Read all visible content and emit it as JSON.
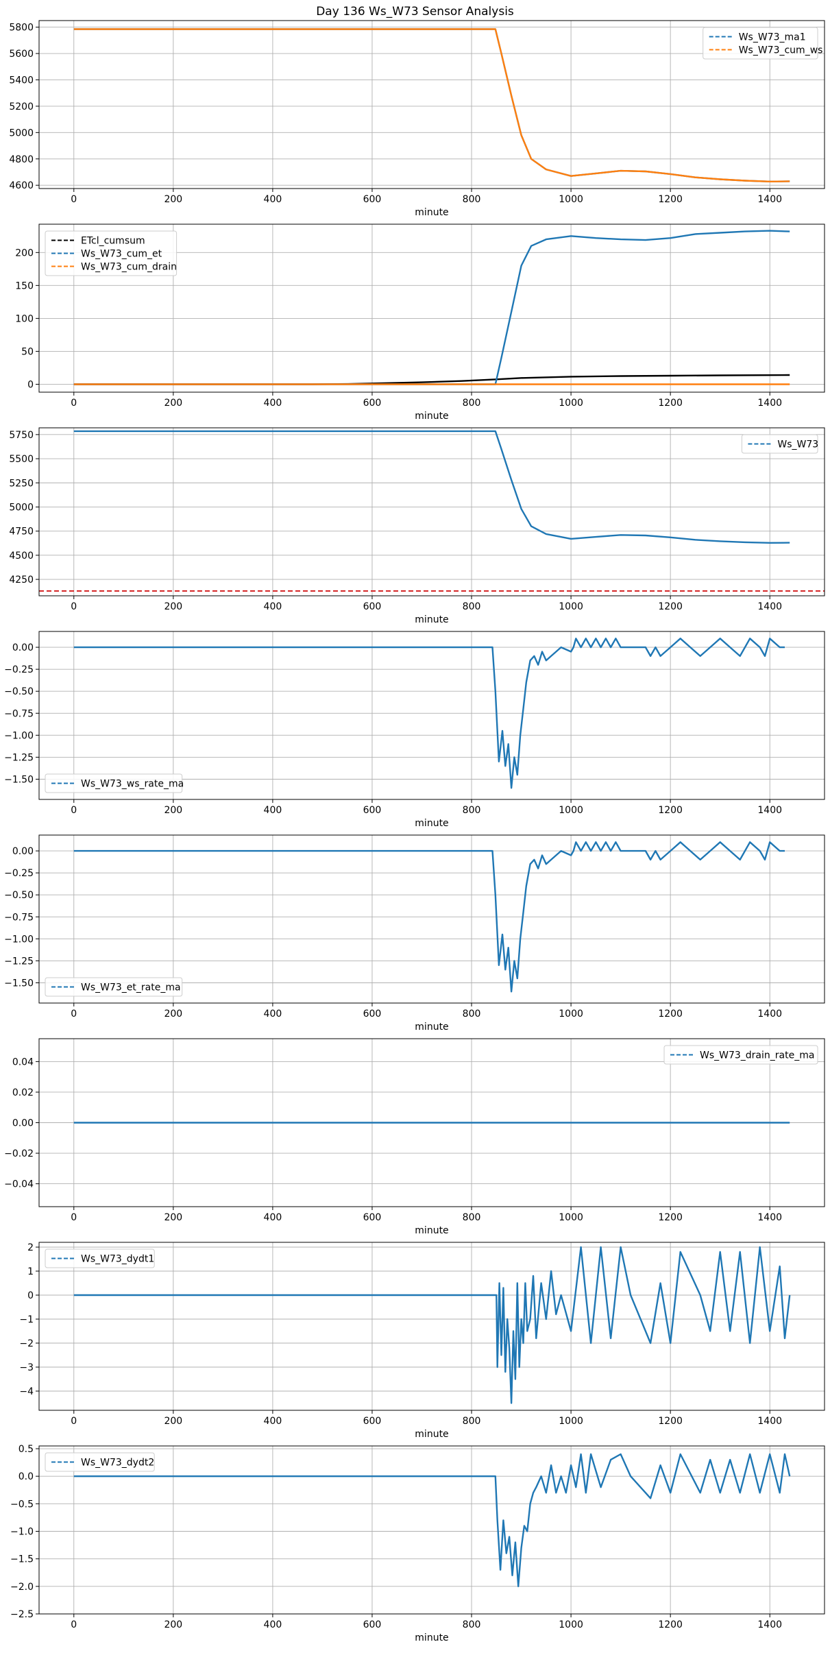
{
  "figure": {
    "title": "Day 136 Ws_W73 Sensor Analysis"
  },
  "colors": {
    "blue": "#1f77b4",
    "orange": "#ff7f0e",
    "black": "#000000",
    "red": "#d62728",
    "grid": "#b0b0b0"
  },
  "chart_data": [
    {
      "type": "line",
      "xlabel": "minute",
      "xlim": [
        -70,
        1510
      ],
      "xticks": [
        0,
        200,
        400,
        600,
        800,
        1000,
        1200,
        1400
      ],
      "ylim": [
        4575,
        5850
      ],
      "yticks": [
        4600,
        4800,
        5000,
        5200,
        5400,
        5600,
        5800
      ],
      "legend": {
        "position": "top-right",
        "entries": [
          "Ws_W73_ma1",
          "Ws_W73_cum_ws"
        ]
      },
      "series": [
        {
          "name": "Ws_W73_ma1",
          "color": "#1f77b4",
          "x": [
            0,
            848,
            860,
            880,
            900,
            920,
            950,
            1000,
            1050,
            1100,
            1150,
            1200,
            1250,
            1300,
            1350,
            1400,
            1440
          ],
          "y": [
            5785,
            5785,
            5600,
            5280,
            4980,
            4800,
            4720,
            4670,
            4690,
            4710,
            4705,
            4685,
            4660,
            4645,
            4635,
            4628,
            4630
          ]
        },
        {
          "name": "Ws_W73_cum_ws",
          "color": "#ff7f0e",
          "x": [
            0,
            848,
            860,
            880,
            900,
            920,
            950,
            1000,
            1050,
            1100,
            1150,
            1200,
            1250,
            1300,
            1350,
            1400,
            1440
          ],
          "y": [
            5785,
            5785,
            5600,
            5280,
            4980,
            4800,
            4720,
            4670,
            4690,
            4710,
            4705,
            4685,
            4660,
            4645,
            4635,
            4628,
            4630
          ]
        }
      ]
    },
    {
      "type": "line",
      "xlabel": "minute",
      "xlim": [
        -70,
        1510
      ],
      "xticks": [
        0,
        200,
        400,
        600,
        800,
        1000,
        1200,
        1400
      ],
      "ylim": [
        -12,
        243
      ],
      "yticks": [
        0,
        50,
        100,
        150,
        200
      ],
      "legend": {
        "position": "top-left",
        "entries": [
          "ETcl_cumsum",
          "Ws_W73_cum_et",
          "Ws_W73_cum_drain"
        ]
      },
      "series": [
        {
          "name": "ETcl_cumsum",
          "color": "#000000",
          "x": [
            0,
            480,
            560,
            620,
            700,
            780,
            850,
            900,
            1000,
            1100,
            1200,
            1300,
            1440
          ],
          "y": [
            0,
            0,
            0.5,
            1.5,
            3,
            5,
            7.5,
            9.5,
            11.5,
            12.5,
            13,
            13.5,
            14
          ]
        },
        {
          "name": "Ws_W73_cum_et",
          "color": "#1f77b4",
          "x": [
            0,
            848,
            860,
            880,
            900,
            920,
            950,
            1000,
            1050,
            1100,
            1150,
            1200,
            1250,
            1300,
            1350,
            1400,
            1440
          ],
          "y": [
            0,
            0,
            40,
            110,
            180,
            210,
            220,
            225,
            222,
            220,
            219,
            222,
            228,
            230,
            232,
            233,
            232
          ]
        },
        {
          "name": "Ws_W73_cum_drain",
          "color": "#ff7f0e",
          "x": [
            0,
            1440
          ],
          "y": [
            0,
            0
          ]
        }
      ]
    },
    {
      "type": "line",
      "xlabel": "minute",
      "xlim": [
        -70,
        1510
      ],
      "xticks": [
        0,
        200,
        400,
        600,
        800,
        1000,
        1200,
        1400
      ],
      "ylim": [
        4080,
        5820
      ],
      "yticks": [
        4250,
        4500,
        4750,
        5000,
        5250,
        5500,
        5750
      ],
      "legend": {
        "position": "top-right",
        "entries": [
          "Ws_W73"
        ]
      },
      "hline": {
        "y": 4130,
        "color": "#d62728"
      },
      "series": [
        {
          "name": "Ws_W73",
          "color": "#1f77b4",
          "x": [
            0,
            848,
            860,
            880,
            900,
            920,
            950,
            1000,
            1050,
            1100,
            1150,
            1200,
            1250,
            1300,
            1350,
            1400,
            1440
          ],
          "y": [
            5785,
            5785,
            5600,
            5280,
            4980,
            4800,
            4720,
            4670,
            4690,
            4710,
            4705,
            4685,
            4660,
            4645,
            4635,
            4628,
            4630
          ]
        }
      ]
    },
    {
      "type": "line",
      "xlabel": "minute",
      "xlim": [
        -70,
        1510
      ],
      "xticks": [
        0,
        200,
        400,
        600,
        800,
        1000,
        1200,
        1400
      ],
      "ylim": [
        -1.73,
        0.18
      ],
      "yticks": [
        -1.5,
        -1.25,
        -1.0,
        -0.75,
        -0.5,
        -0.25,
        0.0
      ],
      "ytick_decimals": 2,
      "legend": {
        "position": "bottom-left",
        "entries": [
          "Ws_W73_ws_rate_ma"
        ]
      },
      "series": [
        {
          "name": "Ws_W73_ws_rate_ma",
          "color": "#1f77b4",
          "x": [
            0,
            842,
            848,
            855,
            862,
            868,
            874,
            880,
            886,
            892,
            898,
            904,
            910,
            918,
            926,
            934,
            942,
            950,
            960,
            980,
            1000,
            1005,
            1010,
            1020,
            1030,
            1040,
            1050,
            1060,
            1070,
            1080,
            1090,
            1100,
            1110,
            1150,
            1160,
            1170,
            1180,
            1200,
            1220,
            1240,
            1260,
            1280,
            1300,
            1320,
            1340,
            1360,
            1380,
            1390,
            1400,
            1420,
            1430
          ],
          "y": [
            0,
            0,
            -0.5,
            -1.3,
            -0.95,
            -1.35,
            -1.1,
            -1.6,
            -1.25,
            -1.45,
            -1.0,
            -0.7,
            -0.4,
            -0.15,
            -0.1,
            -0.2,
            -0.05,
            -0.15,
            -0.1,
            0,
            -0.05,
            0,
            0.1,
            0,
            0.1,
            0,
            0.1,
            0,
            0.1,
            0,
            0.1,
            0,
            0,
            0,
            -0.1,
            0,
            -0.1,
            0,
            0.1,
            0,
            -0.1,
            0,
            0.1,
            0,
            -0.1,
            0.1,
            0,
            -0.1,
            0.1,
            0,
            0
          ]
        }
      ]
    },
    {
      "type": "line",
      "xlabel": "minute",
      "xlim": [
        -70,
        1510
      ],
      "xticks": [
        0,
        200,
        400,
        600,
        800,
        1000,
        1200,
        1400
      ],
      "ylim": [
        -1.73,
        0.18
      ],
      "yticks": [
        -1.5,
        -1.25,
        -1.0,
        -0.75,
        -0.5,
        -0.25,
        0.0
      ],
      "ytick_decimals": 2,
      "legend": {
        "position": "bottom-left",
        "entries": [
          "Ws_W73_et_rate_ma"
        ]
      },
      "series": [
        {
          "name": "Ws_W73_et_rate_ma",
          "color": "#1f77b4",
          "x": [
            0,
            842,
            848,
            855,
            862,
            868,
            874,
            880,
            886,
            892,
            898,
            904,
            910,
            918,
            926,
            934,
            942,
            950,
            960,
            980,
            1000,
            1005,
            1010,
            1020,
            1030,
            1040,
            1050,
            1060,
            1070,
            1080,
            1090,
            1100,
            1110,
            1150,
            1160,
            1170,
            1180,
            1200,
            1220,
            1240,
            1260,
            1280,
            1300,
            1320,
            1340,
            1360,
            1380,
            1390,
            1400,
            1420,
            1430
          ],
          "y": [
            0,
            0,
            -0.5,
            -1.3,
            -0.95,
            -1.35,
            -1.1,
            -1.6,
            -1.25,
            -1.45,
            -1.0,
            -0.7,
            -0.4,
            -0.15,
            -0.1,
            -0.2,
            -0.05,
            -0.15,
            -0.1,
            0,
            -0.05,
            0,
            0.1,
            0,
            0.1,
            0,
            0.1,
            0,
            0.1,
            0,
            0.1,
            0,
            0,
            0,
            -0.1,
            0,
            -0.1,
            0,
            0.1,
            0,
            -0.1,
            0,
            0.1,
            0,
            -0.1,
            0.1,
            0,
            -0.1,
            0.1,
            0,
            0
          ]
        }
      ]
    },
    {
      "type": "line",
      "xlabel": "minute",
      "xlim": [
        -70,
        1510
      ],
      "xticks": [
        0,
        200,
        400,
        600,
        800,
        1000,
        1200,
        1400
      ],
      "ylim": [
        -0.055,
        0.055
      ],
      "yticks": [
        -0.04,
        -0.02,
        0.0,
        0.02,
        0.04
      ],
      "ytick_decimals": 2,
      "legend": {
        "position": "top-right",
        "entries": [
          "Ws_W73_drain_rate_ma"
        ]
      },
      "series": [
        {
          "name": "Ws_W73_drain_rate_ma",
          "color": "#1f77b4",
          "x": [
            0,
            1440
          ],
          "y": [
            0,
            0
          ]
        }
      ]
    },
    {
      "type": "line",
      "xlabel": "minute",
      "xlim": [
        -70,
        1510
      ],
      "xticks": [
        0,
        200,
        400,
        600,
        800,
        1000,
        1200,
        1400
      ],
      "ylim": [
        -4.8,
        2.2
      ],
      "yticks": [
        -4,
        -3,
        -2,
        -1,
        0,
        1,
        2
      ],
      "legend": {
        "position": "top-left",
        "entries": [
          "Ws_W73_dydt1"
        ]
      },
      "series": [
        {
          "name": "Ws_W73_dydt1",
          "color": "#1f77b4",
          "x": [
            0,
            850,
            852,
            856,
            860,
            864,
            868,
            872,
            876,
            880,
            884,
            888,
            892,
            896,
            900,
            904,
            908,
            912,
            918,
            924,
            930,
            940,
            950,
            960,
            970,
            980,
            1000,
            1020,
            1040,
            1060,
            1080,
            1100,
            1120,
            1160,
            1180,
            1200,
            1220,
            1260,
            1280,
            1300,
            1320,
            1340,
            1360,
            1380,
            1400,
            1420,
            1430,
            1440
          ],
          "y": [
            0,
            0,
            -3,
            0.5,
            -2.5,
            0.3,
            -3.2,
            -1,
            -2.2,
            -4.5,
            -1.5,
            -3.5,
            0.5,
            -3,
            -1,
            -2,
            0.5,
            -1.5,
            -1,
            0.8,
            -1.8,
            0.5,
            -1,
            1,
            -0.8,
            0,
            -1.5,
            2,
            -2,
            2,
            -1.8,
            2,
            0,
            -2,
            0.5,
            -2,
            1.8,
            0,
            -1.5,
            1.8,
            -1.5,
            1.8,
            -2,
            2,
            -1.5,
            1.2,
            -1.8,
            0
          ]
        }
      ]
    },
    {
      "type": "line",
      "xlabel": "minute",
      "xlim": [
        -70,
        1510
      ],
      "xticks": [
        0,
        200,
        400,
        600,
        800,
        1000,
        1200,
        1400
      ],
      "ylim": [
        -2.5,
        0.55
      ],
      "yticks": [
        -2.5,
        -2.0,
        -1.5,
        -1.0,
        -0.5,
        0.0,
        0.5
      ],
      "ytick_decimals": 1,
      "legend": {
        "position": "top-left",
        "entries": [
          "Ws_W73_dydt2"
        ]
      },
      "series": [
        {
          "name": "Ws_W73_dydt2",
          "color": "#1f77b4",
          "x": [
            0,
            848,
            852,
            858,
            864,
            870,
            876,
            882,
            888,
            894,
            900,
            906,
            912,
            918,
            924,
            930,
            940,
            950,
            960,
            970,
            980,
            990,
            1000,
            1010,
            1020,
            1030,
            1040,
            1060,
            1080,
            1100,
            1120,
            1160,
            1180,
            1200,
            1220,
            1260,
            1280,
            1300,
            1320,
            1340,
            1360,
            1380,
            1400,
            1420,
            1430,
            1440
          ],
          "y": [
            0,
            0,
            -0.8,
            -1.7,
            -0.8,
            -1.4,
            -1.1,
            -1.8,
            -1.2,
            -2.0,
            -1.3,
            -0.9,
            -1.0,
            -0.5,
            -0.3,
            -0.2,
            0,
            -0.3,
            0.2,
            -0.3,
            0,
            -0.3,
            0.2,
            -0.2,
            0.4,
            -0.3,
            0.4,
            -0.2,
            0.3,
            0.4,
            0,
            -0.4,
            0.2,
            -0.3,
            0.4,
            -0.3,
            0.3,
            -0.3,
            0.3,
            -0.3,
            0.4,
            -0.3,
            0.4,
            -0.3,
            0.4,
            0
          ]
        }
      ]
    }
  ]
}
